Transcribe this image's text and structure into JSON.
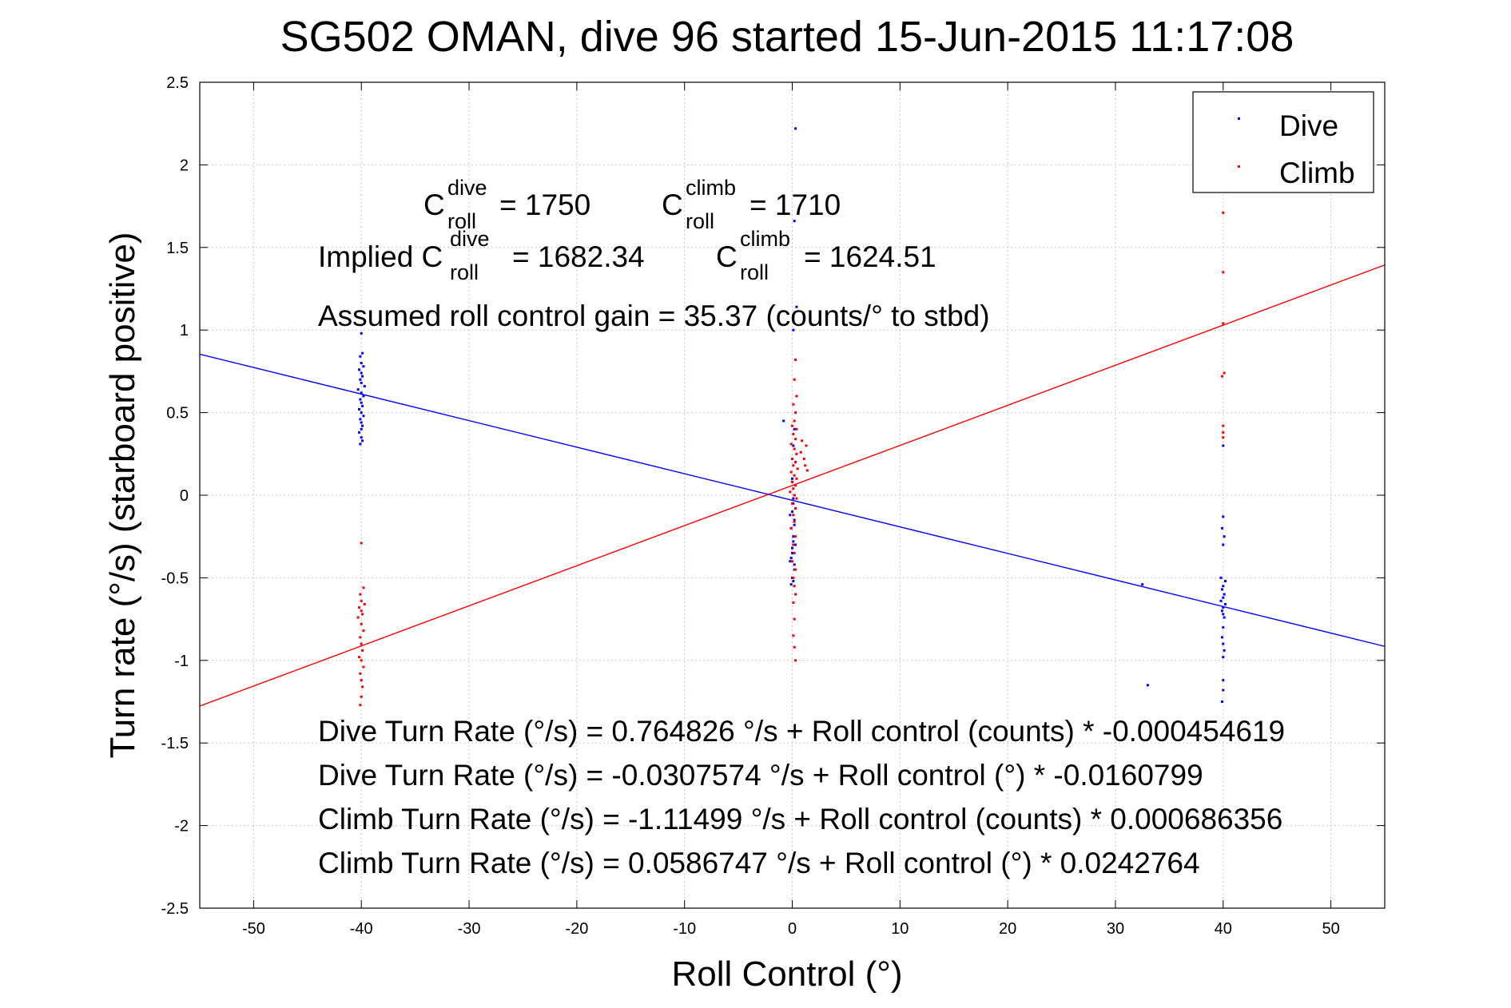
{
  "chart_data": {
    "type": "scatter",
    "title": "SG502 OMAN, dive 96 started 15-Jun-2015 11:17:08",
    "xlabel": "Roll Control (°)",
    "ylabel": "Turn rate (°/s) (starboard positive)",
    "xlim": [
      -55,
      55
    ],
    "ylim": [
      -2.5,
      2.5
    ],
    "xticks": [
      -50,
      -40,
      -30,
      -20,
      -10,
      0,
      10,
      20,
      30,
      40,
      50
    ],
    "yticks": [
      -2.5,
      -2,
      -1.5,
      -1,
      -0.5,
      0,
      0.5,
      1,
      1.5,
      2,
      2.5
    ],
    "grid": true,
    "legend": {
      "position": "top-right",
      "entries": [
        "Dive",
        "Climb"
      ]
    },
    "colors": {
      "dive": "#0000ff",
      "climb": "#ff0000"
    },
    "series": [
      {
        "name": "Dive",
        "points": [
          [
            -40,
            0.98
          ],
          [
            -39.9,
            0.86
          ],
          [
            -40.1,
            0.84
          ],
          [
            -40,
            0.8
          ],
          [
            -39.8,
            0.78
          ],
          [
            -40.2,
            0.76
          ],
          [
            -40,
            0.74
          ],
          [
            -39.9,
            0.72
          ],
          [
            -40.1,
            0.7
          ],
          [
            -40,
            0.68
          ],
          [
            -39.7,
            0.66
          ],
          [
            -40.3,
            0.64
          ],
          [
            -40,
            0.62
          ],
          [
            -39.8,
            0.6
          ],
          [
            -40.1,
            0.58
          ],
          [
            -40,
            0.56
          ],
          [
            -39.9,
            0.54
          ],
          [
            -40.2,
            0.52
          ],
          [
            -40,
            0.5
          ],
          [
            -39.8,
            0.48
          ],
          [
            -40.1,
            0.46
          ],
          [
            -40,
            0.44
          ],
          [
            -39.9,
            0.42
          ],
          [
            -40,
            0.4
          ],
          [
            -40.2,
            0.38
          ],
          [
            -40,
            0.35
          ],
          [
            -39.9,
            0.33
          ],
          [
            -40.1,
            0.31
          ],
          [
            0.3,
            2.22
          ],
          [
            0.2,
            1.66
          ],
          [
            0.4,
            1.14
          ],
          [
            0.1,
            1.0
          ],
          [
            -0.8,
            0.45
          ],
          [
            0.2,
            0.4
          ],
          [
            0.1,
            0.3
          ],
          [
            0.3,
            0.2
          ],
          [
            0,
            0.1
          ],
          [
            0.2,
            0.0
          ],
          [
            0.1,
            -0.05
          ],
          [
            0,
            -0.1
          ],
          [
            0.2,
            -0.15
          ],
          [
            -0.1,
            -0.2
          ],
          [
            0.1,
            -0.25
          ],
          [
            0.3,
            -0.3
          ],
          [
            0,
            -0.35
          ],
          [
            -0.2,
            -0.4
          ],
          [
            0.2,
            -0.45
          ],
          [
            0,
            -0.5
          ],
          [
            0.1,
            -0.52
          ],
          [
            -0.1,
            -0.54
          ],
          [
            0.1,
            -0.02
          ],
          [
            0.3,
            -0.08
          ],
          [
            -0.2,
            -0.12
          ],
          [
            0.2,
            -0.18
          ],
          [
            0.1,
            -0.28
          ],
          [
            0,
            -0.32
          ],
          [
            -0.1,
            -0.38
          ],
          [
            0.2,
            -0.42
          ],
          [
            32.5,
            -0.54
          ],
          [
            33,
            -1.15
          ],
          [
            40,
            0.3
          ],
          [
            40,
            -0.13
          ],
          [
            39.9,
            -0.2
          ],
          [
            40.1,
            -0.25
          ],
          [
            40,
            -0.3
          ],
          [
            39.8,
            -0.5
          ],
          [
            40.2,
            -0.52
          ],
          [
            40,
            -0.55
          ],
          [
            39.9,
            -0.57
          ],
          [
            40.1,
            -0.6
          ],
          [
            40,
            -0.62
          ],
          [
            39.8,
            -0.64
          ],
          [
            40.2,
            -0.66
          ],
          [
            40,
            -0.68
          ],
          [
            39.9,
            -0.7
          ],
          [
            40,
            -0.72
          ],
          [
            40.1,
            -0.74
          ],
          [
            40,
            -0.8
          ],
          [
            39.9,
            -0.86
          ],
          [
            40,
            -0.9
          ],
          [
            40.1,
            -0.94
          ],
          [
            40,
            -0.98
          ],
          [
            40,
            -1.12
          ],
          [
            40,
            -1.18
          ],
          [
            39.9,
            -1.25
          ]
        ]
      },
      {
        "name": "Climb",
        "points": [
          [
            -40,
            -0.29
          ],
          [
            -39.8,
            -0.56
          ],
          [
            -40.1,
            -0.6
          ],
          [
            -40,
            -0.64
          ],
          [
            -39.7,
            -0.66
          ],
          [
            -40.2,
            -0.68
          ],
          [
            -40,
            -0.7
          ],
          [
            -39.9,
            -0.72
          ],
          [
            -40.3,
            -0.74
          ],
          [
            -40,
            -0.78
          ],
          [
            -39.8,
            -0.82
          ],
          [
            -40.1,
            -0.86
          ],
          [
            -40,
            -0.9
          ],
          [
            -39.9,
            -0.94
          ],
          [
            -40.2,
            -0.98
          ],
          [
            -40,
            -1.0
          ],
          [
            -39.8,
            -1.04
          ],
          [
            -40.1,
            -1.08
          ],
          [
            -40,
            -1.12
          ],
          [
            -39.9,
            -1.16
          ],
          [
            -40,
            -1.22
          ],
          [
            -40.1,
            -1.27
          ],
          [
            0.3,
            0.82
          ],
          [
            0.2,
            0.7
          ],
          [
            0.4,
            0.6
          ],
          [
            0.1,
            0.55
          ],
          [
            0.3,
            0.5
          ],
          [
            0.2,
            0.45
          ],
          [
            0,
            0.42
          ],
          [
            0.4,
            0.4
          ],
          [
            0.1,
            0.37
          ],
          [
            0.3,
            0.34
          ],
          [
            -0.1,
            0.31
          ],
          [
            0.2,
            0.28
          ],
          [
            0.4,
            0.25
          ],
          [
            0,
            0.22
          ],
          [
            0.3,
            0.2
          ],
          [
            0.1,
            0.18
          ],
          [
            0.5,
            0.16
          ],
          [
            -0.1,
            0.14
          ],
          [
            0.2,
            0.12
          ],
          [
            0.4,
            0.1
          ],
          [
            0,
            0.08
          ],
          [
            0.3,
            0.06
          ],
          [
            0.1,
            0.04
          ],
          [
            -0.2,
            0.02
          ],
          [
            0.2,
            0.0
          ],
          [
            0.4,
            -0.02
          ],
          [
            0,
            -0.05
          ],
          [
            0.3,
            -0.08
          ],
          [
            0.1,
            -0.12
          ],
          [
            0.2,
            -0.16
          ],
          [
            -0.1,
            -0.2
          ],
          [
            0.3,
            -0.25
          ],
          [
            0.1,
            -0.3
          ],
          [
            0.2,
            -0.35
          ],
          [
            0,
            -0.4
          ],
          [
            0.3,
            -0.45
          ],
          [
            0.1,
            -0.5
          ],
          [
            0.2,
            -0.55
          ],
          [
            0.3,
            -0.6
          ],
          [
            0.1,
            -0.65
          ],
          [
            0.2,
            -0.75
          ],
          [
            0.1,
            -0.85
          ],
          [
            0.2,
            -0.92
          ],
          [
            0.3,
            -1.0
          ],
          [
            1.3,
            0.3
          ],
          [
            1.1,
            0.22
          ],
          [
            1.2,
            0.18
          ],
          [
            1.4,
            0.15
          ],
          [
            0.8,
            0.26
          ],
          [
            0.9,
            0.33
          ],
          [
            40,
            1.71
          ],
          [
            40,
            1.35
          ],
          [
            40,
            1.04
          ],
          [
            40.1,
            0.74
          ],
          [
            39.9,
            0.72
          ],
          [
            40,
            0.42
          ],
          [
            40,
            0.38
          ],
          [
            40,
            0.35
          ]
        ]
      }
    ],
    "fit_lines": [
      {
        "series": "Dive",
        "intercept": -0.0307574,
        "slope": -0.0160799
      },
      {
        "series": "Climb",
        "intercept": 0.0586747,
        "slope": 0.0242764
      }
    ],
    "annotations": {
      "c_dive_base": "C",
      "c_dive_sup": "dive",
      "c_dive_sub": "roll",
      "c_dive_val": "= 1750",
      "c_climb_base": "C",
      "c_climb_sup": "climb",
      "c_climb_sub": "roll",
      "c_climb_val": "= 1710",
      "implied_prefix": "Implied C",
      "implied_dive_sup": "dive",
      "implied_dive_sub": "roll",
      "implied_dive_val": "= 1682.34",
      "implied_climb_base": "C",
      "implied_climb_sup": "climb",
      "implied_climb_sub": "roll",
      "implied_climb_val": "= 1624.51",
      "gain": "Assumed roll control gain = 35.37 (counts/° to stbd)",
      "eq1": "Dive Turn Rate (°/s) = 0.764826 °/s + Roll control (counts) * -0.000454619",
      "eq2": "Dive Turn Rate (°/s) = -0.0307574 °/s + Roll control (°) * -0.0160799",
      "eq3": "Climb Turn Rate (°/s) = -1.11499 °/s + Roll control (counts) * 0.000686356",
      "eq4": "Climb Turn Rate (°/s) = 0.0586747 °/s + Roll control (°) * 0.0242764"
    }
  }
}
